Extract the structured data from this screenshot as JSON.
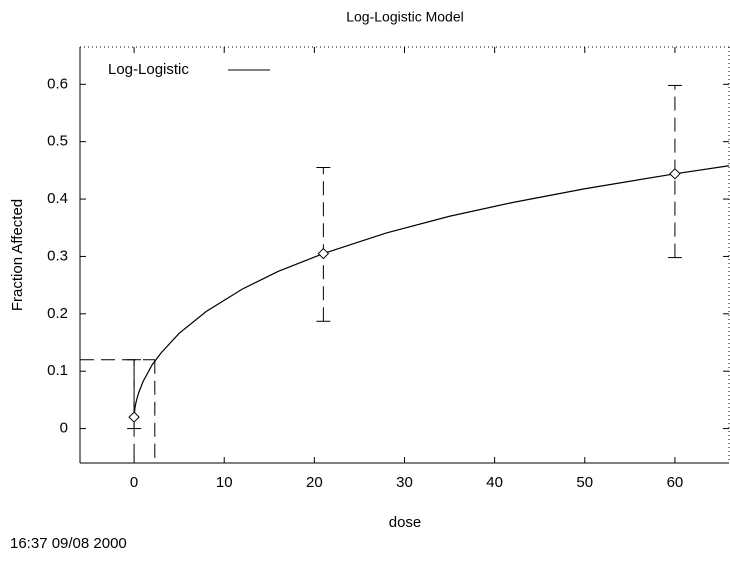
{
  "chart_data": {
    "type": "line",
    "title": "Log-Logistic Model",
    "x_label": "dose",
    "y_label": "Fraction Affected",
    "footer": "16:37 09/08 2000",
    "xlim": [
      -6,
      66
    ],
    "ylim": [
      -0.06,
      0.665
    ],
    "xticks": [
      0,
      10,
      20,
      30,
      40,
      50,
      60
    ],
    "yticks": [
      0,
      0.1,
      0.2,
      0.3,
      0.4,
      0.5,
      0.6
    ],
    "legend": "top-left",
    "observed": {
      "x": [
        0,
        21,
        60
      ],
      "values": [
        0.02,
        0.305,
        0.444
      ],
      "lower": [
        0.0,
        0.187,
        0.298
      ],
      "upper": [
        0.12,
        0.455,
        0.598
      ],
      "color": "#000000"
    },
    "series": [
      {
        "name": "Log-Logistic",
        "color": "#000000",
        "x": [
          0,
          0.1,
          0.25,
          0.5,
          1,
          2,
          3,
          5,
          8,
          12,
          16,
          21,
          28,
          35,
          42,
          50,
          60,
          66
        ],
        "values": [
          0.02,
          0.037,
          0.048,
          0.062,
          0.082,
          0.111,
          0.132,
          0.166,
          0.204,
          0.243,
          0.274,
          0.305,
          0.341,
          0.37,
          0.394,
          0.418,
          0.444,
          0.458
        ]
      }
    ],
    "bmr_level": 0.12,
    "bmd": 2.3,
    "bmdl": 0
  }
}
